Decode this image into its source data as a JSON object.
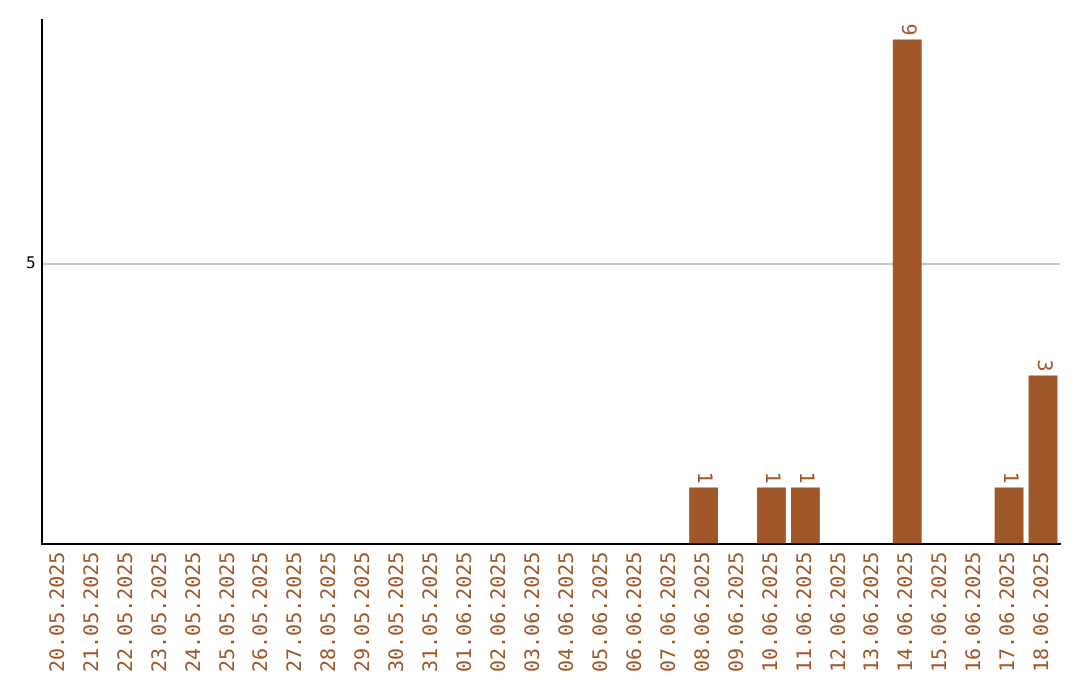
{
  "chart_data": {
    "type": "bar",
    "categories": [
      "20.05.2025",
      "21.05.2025",
      "22.05.2025",
      "23.05.2025",
      "24.05.2025",
      "25.05.2025",
      "26.05.2025",
      "27.05.2025",
      "28.05.2025",
      "29.05.2025",
      "30.05.2025",
      "31.05.2025",
      "01.06.2025",
      "02.06.2025",
      "03.06.2025",
      "04.06.2025",
      "05.06.2025",
      "06.06.2025",
      "07.06.2025",
      "08.06.2025",
      "09.06.2025",
      "10.06.2025",
      "11.06.2025",
      "12.06.2025",
      "13.06.2025",
      "14.06.2025",
      "15.06.2025",
      "16.06.2025",
      "17.06.2025",
      "18.06.2025"
    ],
    "values": [
      null,
      null,
      null,
      null,
      null,
      null,
      null,
      null,
      null,
      null,
      null,
      null,
      null,
      null,
      null,
      null,
      null,
      null,
      null,
      1,
      null,
      1,
      1,
      null,
      null,
      9,
      null,
      null,
      1,
      3
    ],
    "data_labels": true,
    "color": "#a0572a",
    "ylim": [
      0,
      9.35
    ],
    "yticks": [
      5
    ],
    "grid": "y",
    "legend": false
  }
}
